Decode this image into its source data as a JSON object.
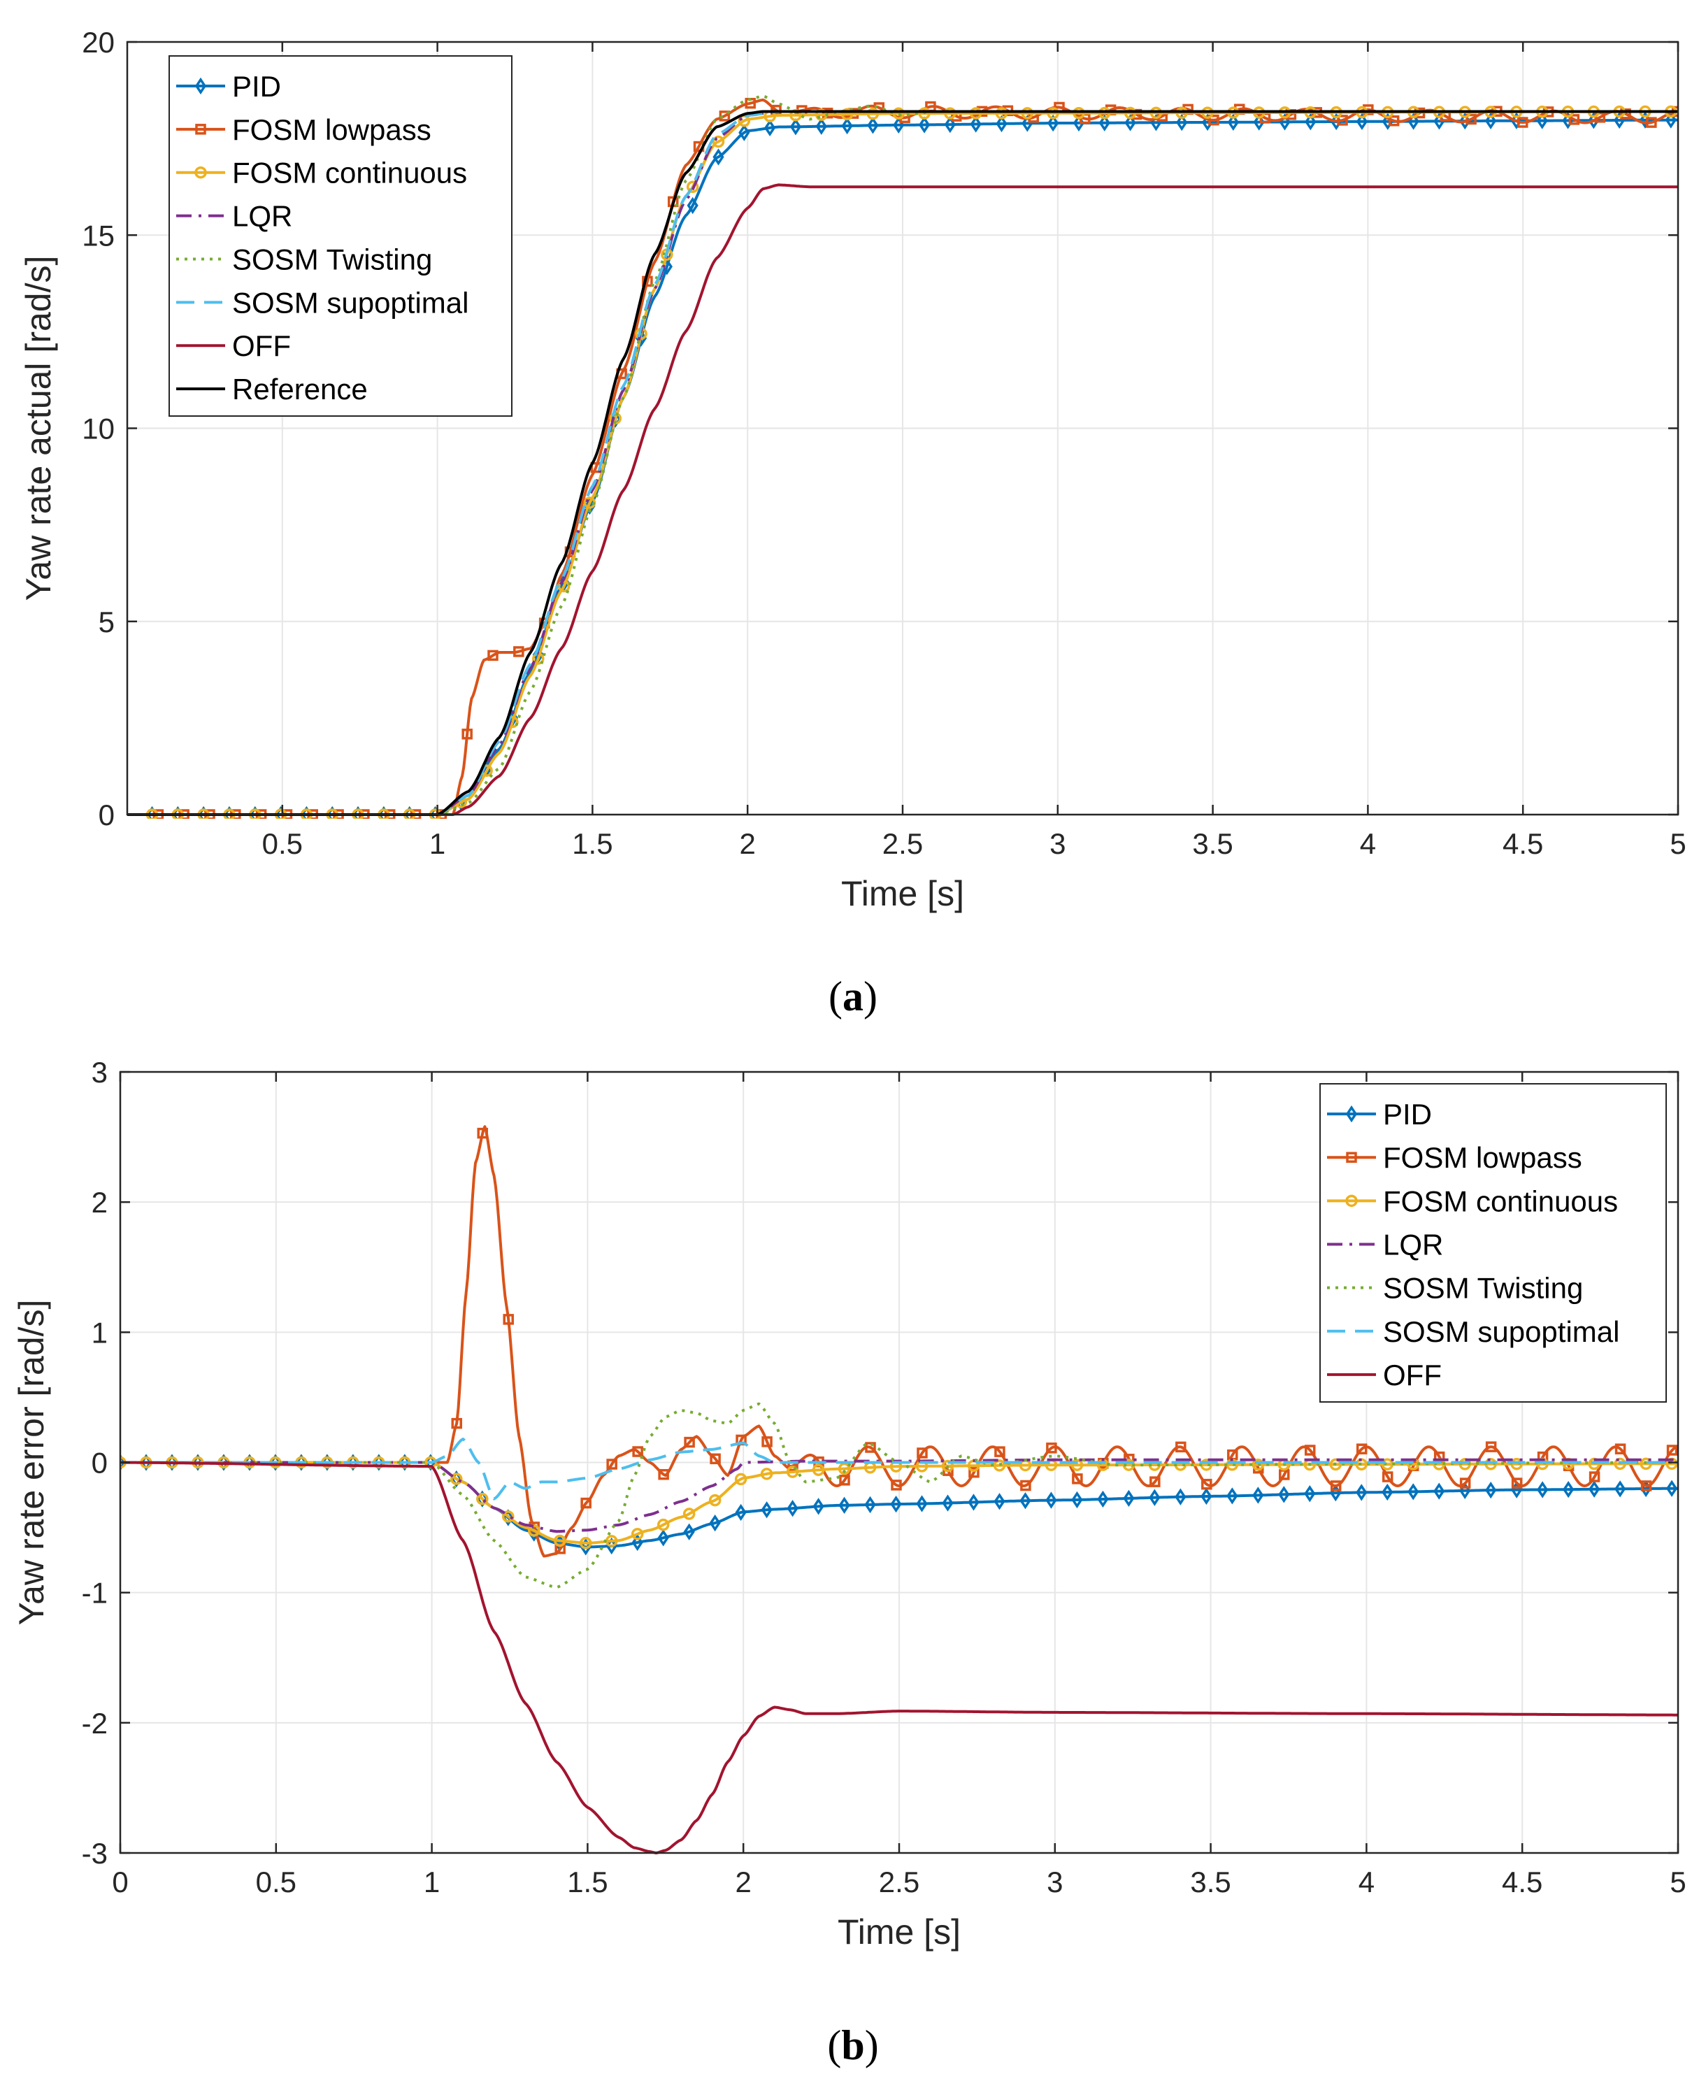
{
  "figure": {
    "caption_a": {
      "open": "(",
      "letter": "a",
      "close": ")"
    },
    "caption_b": {
      "open": "(",
      "letter": "b",
      "close": ")"
    }
  },
  "colors": {
    "axes": "#262626",
    "grid": "#e6e6e6",
    "PID": "#0072BD",
    "FOSM lowpass": "#D95319",
    "FOSM continuous": "#EDB120",
    "LQR": "#7E2F8E",
    "SOSM Twisting": "#77AC30",
    "SOSM supoptimal": "#4DBEEE",
    "OFF": "#A2142F",
    "Reference": "#000000"
  },
  "chart_data": [
    {
      "id": "a",
      "type": "line",
      "xlabel": "Time [s]",
      "ylabel": "Yaw rate actual [rad/s]",
      "xlim": [
        0,
        5
      ],
      "ylim": [
        0,
        20
      ],
      "xticks": [
        0.5,
        1,
        1.5,
        2,
        2.5,
        3,
        3.5,
        4,
        4.5,
        5
      ],
      "xtick_labels": [
        "0.5",
        "1",
        "1.5",
        "2",
        "2.5",
        "3",
        "3.5",
        "4",
        "4.5",
        "5"
      ],
      "yticks": [
        0,
        5,
        10,
        15,
        20
      ],
      "ytick_labels": [
        "0",
        "5",
        "10",
        "15",
        "20"
      ],
      "grid": true,
      "legend_position": "top-left",
      "series": [
        {
          "name": "PID",
          "style": "solid",
          "marker": "diamond",
          "marker_every": 0.083,
          "x": [
            0,
            1.0,
            1.1,
            1.2,
            1.3,
            1.4,
            1.5,
            1.6,
            1.7,
            1.8,
            1.9,
            2.0,
            2.1,
            2.5,
            3.0,
            3.5,
            4.0,
            4.5,
            5.0
          ],
          "y": [
            0,
            0,
            0.4,
            1.7,
            3.7,
            5.9,
            8.1,
            10.8,
            13.4,
            15.5,
            17.0,
            17.7,
            17.8,
            17.85,
            17.9,
            17.92,
            17.94,
            17.96,
            17.98
          ]
        },
        {
          "name": "FOSM lowpass",
          "style": "solid",
          "marker": "square",
          "marker_every": 0.083,
          "marker_start": 0.1,
          "osc": {
            "start": 2.15,
            "amp": 0.15,
            "period": 0.2
          },
          "x": [
            0,
            1.05,
            1.08,
            1.11,
            1.15,
            1.2,
            1.25,
            1.3,
            1.35,
            1.4,
            1.5,
            1.6,
            1.7,
            1.8,
            1.9,
            2.0,
            2.05,
            2.1,
            5.0
          ],
          "y": [
            0,
            0,
            1.0,
            3.0,
            4.0,
            4.2,
            4.2,
            4.3,
            5.0,
            6.2,
            8.8,
            11.5,
            14.3,
            16.8,
            18.0,
            18.4,
            18.5,
            18.2,
            18.05
          ]
        },
        {
          "name": "FOSM continuous",
          "style": "solid",
          "marker": "circle",
          "marker_every": 0.083,
          "marker_start": 0.08,
          "x": [
            0,
            1.0,
            1.1,
            1.2,
            1.3,
            1.4,
            1.5,
            1.6,
            1.7,
            1.8,
            1.9,
            2.0,
            2.1,
            2.5,
            5.0
          ],
          "y": [
            0,
            0,
            0.4,
            1.6,
            3.6,
            5.8,
            8.2,
            10.8,
            13.6,
            16.0,
            17.4,
            18.0,
            18.1,
            18.15,
            18.2
          ]
        },
        {
          "name": "LQR",
          "style": "dashdot",
          "marker": "none",
          "x": [
            0,
            1.0,
            1.1,
            1.2,
            1.3,
            1.4,
            1.5,
            1.6,
            1.7,
            1.8,
            1.9,
            2.0,
            2.1,
            5.0
          ],
          "y": [
            0,
            0,
            0.5,
            1.8,
            3.8,
            6.0,
            8.4,
            11.0,
            13.6,
            15.9,
            17.5,
            18.1,
            18.2,
            18.2
          ]
        },
        {
          "name": "SOSM Twisting",
          "style": "dotted",
          "marker": "none",
          "x": [
            0,
            1.0,
            1.1,
            1.2,
            1.3,
            1.4,
            1.5,
            1.6,
            1.7,
            1.8,
            1.9,
            2.0,
            2.05,
            2.1,
            2.2,
            2.3,
            2.4,
            2.5,
            2.6,
            5.0
          ],
          "y": [
            0,
            0,
            0.3,
            1.2,
            3.2,
            5.4,
            8.0,
            10.8,
            13.8,
            16.4,
            18.0,
            18.5,
            18.6,
            18.4,
            18.0,
            18.2,
            18.35,
            18.1,
            18.2,
            18.2
          ]
        },
        {
          "name": "SOSM supoptimal",
          "style": "dashed",
          "marker": "none",
          "x": [
            0,
            1.0,
            1.1,
            1.2,
            1.3,
            1.4,
            1.5,
            1.6,
            1.7,
            1.8,
            1.9,
            2.0,
            2.1,
            5.0
          ],
          "y": [
            0,
            0,
            0.5,
            1.9,
            3.9,
            6.1,
            8.5,
            11.1,
            13.7,
            16.0,
            17.6,
            18.1,
            18.2,
            18.2
          ]
        },
        {
          "name": "OFF",
          "style": "solid",
          "marker": "none",
          "x": [
            0,
            1.05,
            1.1,
            1.2,
            1.3,
            1.4,
            1.5,
            1.6,
            1.7,
            1.8,
            1.9,
            2.0,
            2.05,
            2.1,
            2.2,
            2.5,
            5.0
          ],
          "y": [
            0,
            0,
            0.2,
            1.0,
            2.5,
            4.3,
            6.3,
            8.4,
            10.5,
            12.5,
            14.4,
            15.7,
            16.2,
            16.3,
            16.25,
            16.25,
            16.25
          ]
        },
        {
          "name": "Reference",
          "style": "solid",
          "marker": "none",
          "x": [
            0,
            1.0,
            1.1,
            1.2,
            1.3,
            1.4,
            1.5,
            1.6,
            1.7,
            1.8,
            1.9,
            2.0,
            2.05,
            5.0
          ],
          "y": [
            0,
            0,
            0.6,
            2.0,
            4.2,
            6.5,
            9.1,
            11.8,
            14.5,
            16.6,
            17.8,
            18.15,
            18.2,
            18.2
          ]
        }
      ]
    },
    {
      "id": "b",
      "type": "line",
      "xlabel": "Time [s]",
      "ylabel": "Yaw rate error [rad/s]",
      "xlim": [
        0,
        5
      ],
      "ylim": [
        -3,
        3
      ],
      "xticks": [
        0,
        0.5,
        1,
        1.5,
        2,
        2.5,
        3,
        3.5,
        4,
        4.5,
        5
      ],
      "xtick_labels": [
        "0",
        "0.5",
        "1",
        "1.5",
        "2",
        "2.5",
        "3",
        "3.5",
        "4",
        "4.5",
        "5"
      ],
      "yticks": [
        -3,
        -2,
        -1,
        0,
        1,
        2,
        3
      ],
      "ytick_labels": [
        "-3",
        "-2",
        "-1",
        "0",
        "1",
        "2",
        "3"
      ],
      "grid": true,
      "legend_position": "top-right",
      "series": [
        {
          "name": "PID",
          "style": "solid",
          "marker": "diamond",
          "marker_every": 0.083,
          "x": [
            0,
            1.0,
            1.1,
            1.2,
            1.3,
            1.4,
            1.5,
            1.6,
            1.7,
            1.8,
            1.9,
            2.0,
            2.1,
            2.3,
            2.5,
            3.0,
            3.5,
            4.0,
            4.5,
            5.0
          ],
          "y": [
            0,
            0,
            -0.15,
            -0.35,
            -0.52,
            -0.62,
            -0.65,
            -0.64,
            -0.6,
            -0.55,
            -0.47,
            -0.38,
            -0.36,
            -0.33,
            -0.32,
            -0.29,
            -0.26,
            -0.23,
            -0.21,
            -0.2
          ]
        },
        {
          "name": "FOSM lowpass",
          "style": "solid",
          "marker": "square",
          "marker_every": 0.083,
          "marker_start": 1.08,
          "osc": {
            "start": 2.15,
            "amp": 0.15,
            "period": 0.2,
            "center": -0.03
          },
          "x": [
            0,
            1.05,
            1.08,
            1.11,
            1.14,
            1.17,
            1.2,
            1.24,
            1.28,
            1.32,
            1.36,
            1.4,
            1.45,
            1.5,
            1.55,
            1.6,
            1.65,
            1.7,
            1.75,
            1.8,
            1.85,
            1.9,
            1.95,
            2.0,
            2.05,
            2.1,
            2.15
          ],
          "y": [
            0,
            0,
            0.3,
            1.3,
            2.3,
            2.58,
            2.2,
            1.2,
            0.2,
            -0.45,
            -0.72,
            -0.7,
            -0.5,
            -0.3,
            -0.1,
            0.05,
            0.1,
            0.0,
            -0.1,
            0.1,
            0.2,
            0.05,
            -0.1,
            0.2,
            0.28,
            0.05,
            -0.05
          ]
        },
        {
          "name": "FOSM continuous",
          "style": "solid",
          "marker": "circle",
          "marker_every": 0.083,
          "x": [
            0,
            1.0,
            1.1,
            1.2,
            1.3,
            1.4,
            1.5,
            1.6,
            1.7,
            1.8,
            1.9,
            2.0,
            2.1,
            2.3,
            2.5,
            3.0,
            5.0
          ],
          "y": [
            0,
            0,
            -0.15,
            -0.35,
            -0.5,
            -0.6,
            -0.62,
            -0.6,
            -0.52,
            -0.42,
            -0.3,
            -0.12,
            -0.08,
            -0.05,
            -0.03,
            -0.02,
            -0.01
          ]
        },
        {
          "name": "LQR",
          "style": "dashdot",
          "marker": "none",
          "x": [
            0,
            1.0,
            1.1,
            1.2,
            1.3,
            1.4,
            1.5,
            1.6,
            1.7,
            1.8,
            1.9,
            1.98,
            2.0,
            2.2,
            2.5,
            3.0,
            5.0
          ],
          "y": [
            0,
            0,
            -0.15,
            -0.35,
            -0.48,
            -0.53,
            -0.52,
            -0.48,
            -0.4,
            -0.3,
            -0.18,
            -0.05,
            0.0,
            0.01,
            0.01,
            0.02,
            0.02
          ]
        },
        {
          "name": "SOSM Twisting",
          "style": "dotted",
          "marker": "none",
          "x": [
            0,
            1.0,
            1.1,
            1.2,
            1.3,
            1.4,
            1.5,
            1.6,
            1.65,
            1.7,
            1.75,
            1.8,
            1.85,
            1.9,
            1.95,
            2.0,
            2.05,
            2.1,
            2.15,
            2.2,
            2.3,
            2.4,
            2.5,
            2.6,
            2.7,
            2.8,
            3.0,
            3.2,
            5.0
          ],
          "y": [
            0,
            0,
            -0.25,
            -0.6,
            -0.88,
            -0.96,
            -0.82,
            -0.45,
            -0.1,
            0.2,
            0.35,
            0.4,
            0.38,
            0.32,
            0.3,
            0.4,
            0.45,
            0.3,
            0.0,
            -0.15,
            -0.12,
            0.15,
            0.0,
            -0.15,
            0.05,
            -0.02,
            0.05,
            -0.02,
            0.0
          ]
        },
        {
          "name": "SOSM supoptimal",
          "style": "dashed",
          "marker": "none",
          "x": [
            0,
            1.0,
            1.05,
            1.1,
            1.15,
            1.2,
            1.25,
            1.3,
            1.35,
            1.4,
            1.5,
            1.6,
            1.7,
            1.8,
            1.9,
            2.0,
            2.05,
            2.1,
            2.2,
            5.0
          ],
          "y": [
            0,
            0,
            0.05,
            0.18,
            0.0,
            -0.28,
            -0.15,
            -0.2,
            -0.15,
            -0.15,
            -0.12,
            -0.05,
            0.02,
            0.08,
            0.1,
            0.15,
            0.05,
            0.0,
            0.0,
            0.0
          ]
        },
        {
          "name": "OFF",
          "style": "solid",
          "marker": "none",
          "x": [
            0,
            1.0,
            1.1,
            1.2,
            1.3,
            1.4,
            1.5,
            1.6,
            1.65,
            1.7,
            1.72,
            1.75,
            1.8,
            1.85,
            1.9,
            1.95,
            2.0,
            2.05,
            2.1,
            2.15,
            2.2,
            2.3,
            2.5,
            3.0,
            4.0,
            5.0
          ],
          "y": [
            0,
            -0.03,
            -0.6,
            -1.3,
            -1.85,
            -2.3,
            -2.65,
            -2.88,
            -2.96,
            -2.99,
            -3.0,
            -2.98,
            -2.9,
            -2.75,
            -2.55,
            -2.3,
            -2.1,
            -1.95,
            -1.88,
            -1.9,
            -1.93,
            -1.93,
            -1.91,
            -1.92,
            -1.93,
            -1.94
          ]
        }
      ]
    }
  ]
}
